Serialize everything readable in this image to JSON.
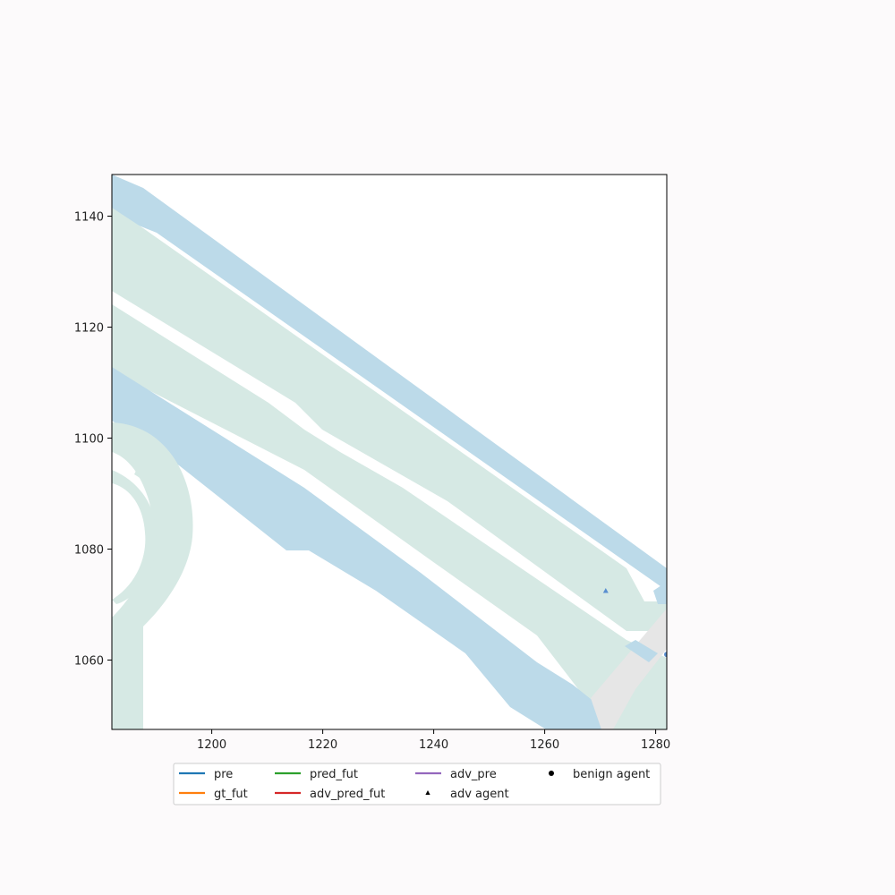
{
  "chart_data": {
    "type": "scatter",
    "title": "",
    "xlabel": "",
    "ylabel": "",
    "xlim": [
      1182,
      1282
    ],
    "ylim": [
      1047.5,
      1147.5
    ],
    "xticks": [
      1200,
      1220,
      1240,
      1260,
      1280
    ],
    "yticks": [
      1060,
      1080,
      1100,
      1120,
      1140
    ],
    "grid": false,
    "legend_position": "bottom",
    "legend": [
      {
        "label": "pre",
        "marker": "line",
        "color": "#1f77b4"
      },
      {
        "label": "gt_fut",
        "marker": "line",
        "color": "#ff7f0e"
      },
      {
        "label": "pred_fut",
        "marker": "line",
        "color": "#2ca02c"
      },
      {
        "label": "adv_pred_fut",
        "marker": "line",
        "color": "#d62728"
      },
      {
        "label": "adv_pre",
        "marker": "line",
        "color": "#9467bd"
      },
      {
        "label": "adv agent",
        "marker": "triangle",
        "color": "#000000"
      },
      {
        "label": "benign agent",
        "marker": "circle",
        "color": "#000000"
      }
    ],
    "agents": [
      {
        "kind": "adv agent",
        "x": 1271,
        "y": 1072.5,
        "color": "#5a8fd0"
      },
      {
        "kind": "benign agent",
        "x": 1282,
        "y": 1061,
        "color": "#5a8fd0"
      }
    ],
    "map_colors": {
      "lane": "#d6e9e4",
      "sidewalk": "#bcdae9",
      "crosswalk": "#e6e6e6",
      "background": "#ffffff"
    }
  }
}
